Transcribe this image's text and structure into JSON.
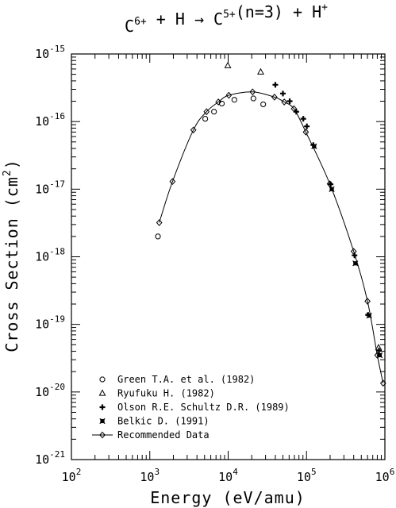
{
  "chart_data": {
    "type": "scatter",
    "title": {
      "parts": [
        {
          "text": "C",
          "sup": "6+"
        },
        {
          "text": " + H → C",
          "sup": "5+"
        },
        {
          "text": "(n=3) + H",
          "sup": "+"
        }
      ]
    },
    "xlabel": "Energy (eV/amu)",
    "ylabel": {
      "base": "Cross Section (cm",
      "sup": "2",
      "close": ")"
    },
    "x_scale": "log",
    "y_scale": "log",
    "xlim": [
      100,
      1000000
    ],
    "ylim": [
      1e-21,
      1e-15
    ],
    "grid": false,
    "legend_position": "bottom-left",
    "x_ticks": [
      {
        "value": 100,
        "base": "10",
        "exp": "2"
      },
      {
        "value": 1000,
        "base": "10",
        "exp": "3"
      },
      {
        "value": 10000,
        "base": "10",
        "exp": "4"
      },
      {
        "value": 100000,
        "base": "10",
        "exp": "5"
      },
      {
        "value": 1000000,
        "base": "10",
        "exp": "6"
      }
    ],
    "y_ticks": [
      {
        "value": 1e-15,
        "base": "10",
        "exp": "-15"
      },
      {
        "value": 1e-16,
        "base": "10",
        "exp": "-16"
      },
      {
        "value": 1e-17,
        "base": "10",
        "exp": "-17"
      },
      {
        "value": 1e-18,
        "base": "10",
        "exp": "-18"
      },
      {
        "value": 1e-19,
        "base": "10",
        "exp": "-19"
      },
      {
        "value": 1e-20,
        "base": "10",
        "exp": "-20"
      },
      {
        "value": 1e-21,
        "base": "10",
        "exp": "-21"
      }
    ],
    "series": [
      {
        "name": "Green T.A. et al. (1982)",
        "marker": "octagon",
        "points": [
          [
            1270,
            2e-18
          ],
          [
            5100,
            1.1e-16
          ],
          [
            6600,
            1.4e-16
          ],
          [
            8300,
            1.85e-16
          ],
          [
            12000,
            2.1e-16
          ],
          [
            21000,
            2.2e-16
          ],
          [
            28000,
            1.8e-16
          ]
        ]
      },
      {
        "name": "Ryufuku H. (1982)",
        "marker": "triangle",
        "points": [
          [
            9900,
            6.7e-16
          ],
          [
            26000,
            5.4e-16
          ],
          [
            830000,
            4.5e-20
          ]
        ]
      },
      {
        "name": "Olson R.E. Schultz D.R. (1989)",
        "marker": "plus",
        "points": [
          [
            40000,
            3.5e-16
          ],
          [
            50000,
            2.6e-16
          ],
          [
            61000,
            2e-16
          ],
          [
            74000,
            1.4e-16
          ],
          [
            91000,
            1.1e-16
          ],
          [
            101000,
            8.5e-17
          ],
          [
            122000,
            4.5e-17
          ],
          [
            203000,
            1.18e-17
          ],
          [
            410000,
            1.05e-18
          ],
          [
            610000,
            1.38e-19
          ],
          [
            840000,
            4.1e-20
          ]
        ]
      },
      {
        "name": "Belkic D. (1991)",
        "marker": "x-box",
        "points": [
          [
            125000,
            4.3e-17
          ],
          [
            210000,
            1e-17
          ],
          [
            420000,
            8e-19
          ],
          [
            630000,
            1.35e-19
          ],
          [
            860000,
            3.5e-20
          ]
        ]
      },
      {
        "name": "Recommended Data",
        "marker": "diamond",
        "line": true,
        "points": [
          [
            1320,
            3.2e-18
          ],
          [
            1950,
            1.3e-17
          ],
          [
            3600,
            7.5e-17
          ],
          [
            5300,
            1.4e-16
          ],
          [
            7500,
            1.95e-16
          ],
          [
            10200,
            2.45e-16
          ],
          [
            20500,
            2.75e-16
          ],
          [
            39000,
            2.3e-16
          ],
          [
            52000,
            1.95e-16
          ],
          [
            69000,
            1.55e-16
          ],
          [
            98000,
            7e-17
          ],
          [
            198000,
            1.2e-17
          ],
          [
            400000,
            1.2e-18
          ],
          [
            600000,
            2.2e-19
          ],
          [
            800000,
            3.5e-20
          ],
          [
            950000,
            1.35e-20
          ]
        ]
      }
    ]
  }
}
